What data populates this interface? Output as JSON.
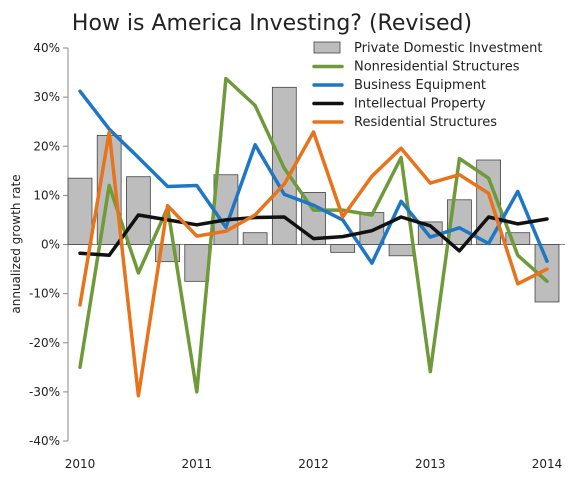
{
  "chart_data": {
    "type": "bar+line",
    "title": "How is America Investing? (Revised)",
    "ylabel": "annualized growth rate",
    "xlabel": "",
    "ylim": [
      -40,
      40
    ],
    "yticks": [
      40,
      30,
      20,
      10,
      0,
      -10,
      -20,
      -30,
      -40
    ],
    "ytick_labels": [
      "40%",
      "30%",
      "20%",
      "10%",
      "0%",
      "-10%",
      "-20%",
      "-30%",
      "-40%"
    ],
    "xticks": [
      "2010",
      "2011",
      "2012",
      "2013",
      "2014"
    ],
    "x_start": 2010.0,
    "x_end": 2014.0,
    "quarter_positions": [
      2010.0,
      2010.25,
      2010.5,
      2010.75,
      2011.0,
      2011.25,
      2011.5,
      2011.75,
      2012.0,
      2012.25,
      2012.5,
      2012.75,
      2013.0,
      2013.25,
      2013.5,
      2013.75,
      2014.0
    ],
    "legend_position": "top-right",
    "grid": false,
    "bars": {
      "name": "Private Domestic Investment",
      "color": "#bdbdbd",
      "values": [
        13.5,
        22.2,
        13.8,
        -3.5,
        -7.5,
        14.2,
        2.4,
        32.0,
        10.6,
        -1.6,
        6.5,
        -2.3,
        4.6,
        9.1,
        17.2,
        2.4,
        -11.7
      ]
    },
    "series": [
      {
        "name": "Nonresidential Structures",
        "color": "#6e9a3a",
        "values": [
          -25.0,
          12.0,
          -5.8,
          7.5,
          -30.0,
          33.8,
          28.3,
          15.5,
          7.0,
          7.0,
          6.0,
          17.7,
          -25.9,
          17.5,
          13.5,
          -2.2,
          -7.5
        ]
      },
      {
        "name": "Business Equipment",
        "color": "#1f77c4",
        "values": [
          31.2,
          23.5,
          17.7,
          11.8,
          12.0,
          3.5,
          20.3,
          10.2,
          8.0,
          5.0,
          -3.8,
          8.8,
          1.5,
          3.4,
          0.2,
          10.8,
          -3.4
        ]
      },
      {
        "name": "Intellectual Property",
        "color": "#111111",
        "values": [
          -1.8,
          -2.2,
          6.0,
          5.0,
          4.0,
          5.0,
          5.5,
          5.6,
          1.2,
          1.6,
          2.8,
          5.6,
          3.8,
          -1.3,
          5.6,
          4.2,
          5.2
        ]
      },
      {
        "name": "Residential Structures",
        "color": "#e8731a",
        "values": [
          -12.3,
          22.9,
          -30.8,
          7.9,
          1.7,
          2.7,
          6.0,
          12.3,
          22.9,
          5.6,
          13.9,
          19.6,
          12.5,
          14.2,
          10.4,
          -8.0,
          -5.0
        ]
      }
    ]
  }
}
